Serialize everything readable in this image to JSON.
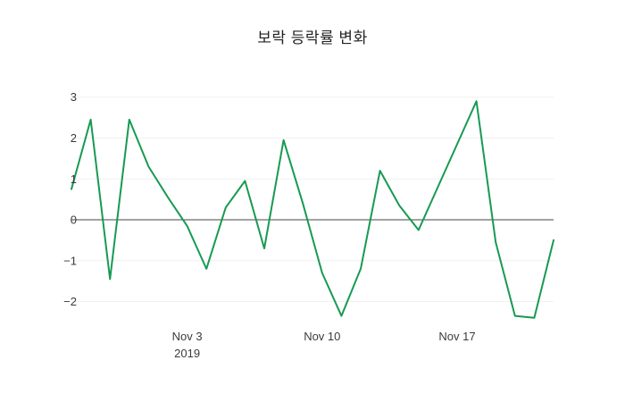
{
  "title": "보락 등락률 변화",
  "chart_data": {
    "type": "line",
    "title": "보락 등락률 변화",
    "xlabel": "",
    "ylabel": "",
    "legend": "none",
    "grid": true,
    "background": "#ffffff",
    "line_color": "#179a52",
    "zero_line": true,
    "zero_line_color": "#444444",
    "grid_color": "#f0f0f0",
    "ylim": [
      -2.6,
      3.3
    ],
    "yticks": [
      -2,
      -1,
      0,
      1,
      2,
      3
    ],
    "x": [
      "2019-10-28",
      "2019-10-29",
      "2019-10-30",
      "2019-10-31",
      "2019-11-01",
      "2019-11-02",
      "2019-11-03",
      "2019-11-04",
      "2019-11-05",
      "2019-11-06",
      "2019-11-07",
      "2019-11-08",
      "2019-11-09",
      "2019-11-10",
      "2019-11-11",
      "2019-11-12",
      "2019-11-13",
      "2019-11-14",
      "2019-11-15",
      "2019-11-16",
      "2019-11-17",
      "2019-11-18",
      "2019-11-19",
      "2019-11-20",
      "2019-11-21",
      "2019-11-22"
    ],
    "values": [
      0.75,
      2.45,
      -1.45,
      2.45,
      1.3,
      0.55,
      -0.15,
      -1.2,
      0.3,
      0.95,
      -0.7,
      1.95,
      0.4,
      -1.3,
      -2.35,
      -1.2,
      1.2,
      0.35,
      -0.25,
      0.8,
      1.85,
      2.9,
      -0.55,
      -2.35,
      -2.4,
      -0.5
    ],
    "xticks": [
      {
        "x": "2019-11-03",
        "label": "Nov 3",
        "sublabel": "2019"
      },
      {
        "x": "2019-11-10",
        "label": "Nov 10",
        "sublabel": ""
      },
      {
        "x": "2019-11-17",
        "label": "Nov 17",
        "sublabel": ""
      }
    ]
  }
}
